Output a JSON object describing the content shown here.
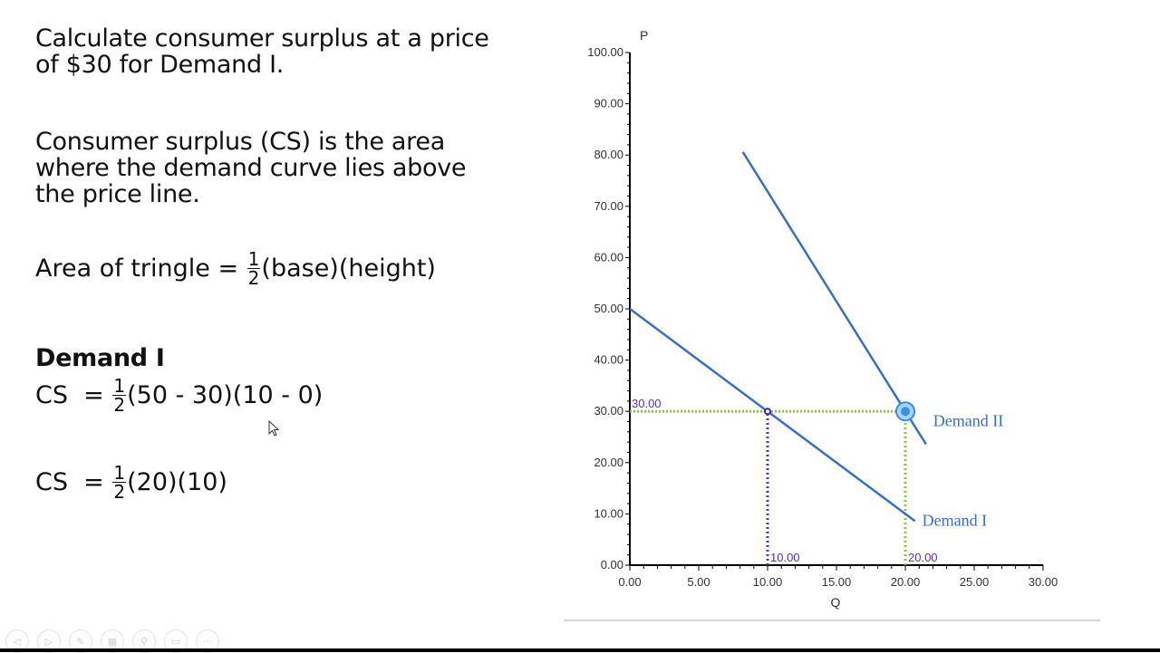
{
  "slide": {
    "question_line1": "Calculate consumer surplus at a price",
    "question_line2": "of $30 for Demand I.",
    "definition_line1": "Consumer surplus (CS) is the area",
    "definition_line2": "where the demand curve lies above",
    "definition_line3": "the price line.",
    "area_formula": {
      "prefix": "Area of tringle = ",
      "frac_num": "1",
      "frac_den": "2",
      "suffix": "(base)(height)"
    },
    "section_heading": "Demand I",
    "cs_step1": {
      "prefix": "CS  = ",
      "frac_num": "1",
      "frac_den": "2",
      "suffix": "(50 - 30)(10 - 0)"
    },
    "cs_step2": {
      "prefix": "CS  = ",
      "frac_num": "1",
      "frac_den": "2",
      "suffix": "(20)(10)"
    }
  },
  "nav_controls": [
    "previous-slide",
    "next-slide",
    "pen-tool",
    "slide-sorter",
    "zoom",
    "subtitles",
    "more-options"
  ],
  "chart_data": {
    "type": "line",
    "title": "",
    "xlabel": "Q",
    "ylabel": "P",
    "xlim": [
      0,
      30
    ],
    "ylim": [
      0,
      100
    ],
    "x_ticks": [
      "0.00",
      "5.00",
      "10.00",
      "15.00",
      "20.00",
      "25.00",
      "30.00"
    ],
    "y_ticks": [
      "0.00",
      "10.00",
      "20.00",
      "30.00",
      "40.00",
      "50.00",
      "60.00",
      "70.00",
      "80.00",
      "90.00",
      "100.00"
    ],
    "grid": false,
    "series": [
      {
        "name": "Demand I",
        "color": "#3a6fc7",
        "points": [
          [
            0,
            50
          ],
          [
            10,
            30
          ],
          [
            20,
            10
          ],
          [
            20.7,
            8.6
          ]
        ]
      },
      {
        "name": "Demand II",
        "color": "#3a6fc7",
        "points": [
          [
            8.2,
            80.6
          ],
          [
            20,
            30
          ],
          [
            21.5,
            23.6
          ]
        ]
      }
    ],
    "reference_lines": [
      {
        "type": "horizontal",
        "y": 30,
        "from_x": 0,
        "to_x": 20,
        "color": "#8dc63f",
        "style": "dotted",
        "label": "30.00",
        "label_color": "#5b2fbf"
      },
      {
        "type": "vertical",
        "x": 10,
        "from_y": 0,
        "to_y": 30,
        "color": "#5b2fbf",
        "style": "dotted",
        "label": "10.00",
        "label_color": "#5b2fbf"
      },
      {
        "type": "vertical",
        "x": 20,
        "from_y": 0,
        "to_y": 30,
        "color": "#8dc63f",
        "style": "dotted",
        "label": "20.00",
        "label_color": "#5b2fbf"
      }
    ],
    "points": [
      {
        "x": 10,
        "y": 30,
        "marker": "small-circle",
        "color": "#3a2a9a"
      },
      {
        "x": 20,
        "y": 30,
        "marker": "target-circle",
        "color": "#3a8fe0"
      }
    ],
    "legend": "inline labels at curve ends"
  }
}
